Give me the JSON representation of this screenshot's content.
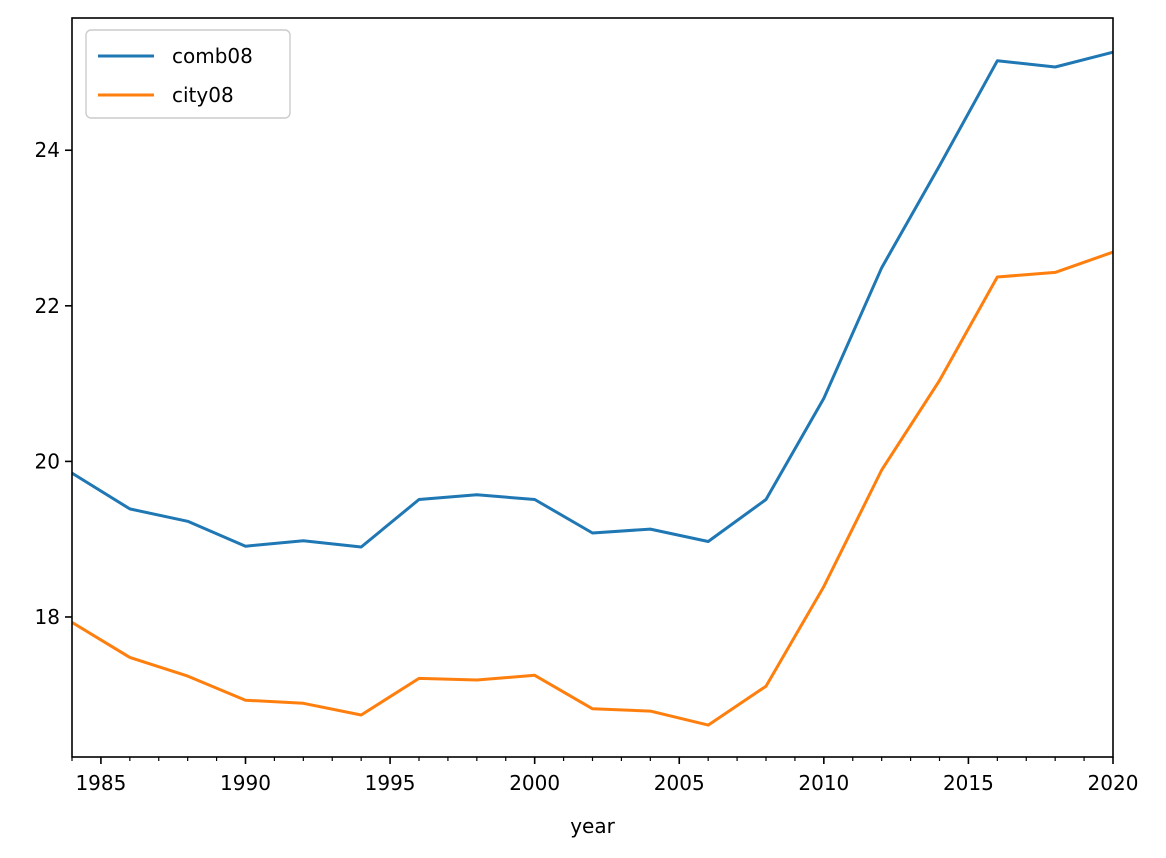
{
  "chart_data": {
    "type": "line",
    "title": "",
    "xlabel": "year",
    "ylabel": "",
    "x": [
      1984,
      1986,
      1988,
      1990,
      1992,
      1994,
      1996,
      1998,
      2000,
      2002,
      2004,
      2006,
      2008,
      2010,
      2012,
      2014,
      2016,
      2018,
      2020
    ],
    "series": [
      {
        "name": "comb08",
        "color": "#1f77b4",
        "values": [
          19.85,
          19.39,
          19.23,
          18.91,
          18.98,
          18.9,
          19.51,
          19.57,
          19.51,
          19.08,
          19.13,
          18.97,
          19.51,
          20.81,
          22.49,
          23.8,
          25.15,
          25.07,
          25.26
        ]
      },
      {
        "name": "city08",
        "color": "#ff7f0e",
        "values": [
          17.93,
          17.48,
          17.24,
          16.93,
          16.89,
          16.74,
          17.21,
          17.19,
          17.25,
          16.82,
          16.79,
          16.61,
          17.11,
          18.39,
          19.89,
          21.04,
          22.37,
          22.43,
          22.69
        ]
      }
    ],
    "xlim": [
      1984,
      2020
    ],
    "ylim": [
      16.2,
      25.7
    ],
    "x_ticks": [
      1985,
      1990,
      1995,
      2000,
      2005,
      2010,
      2015,
      2020
    ],
    "x_tick_labels": [
      "1985",
      "1990",
      "1995",
      "2000",
      "2005",
      "2010",
      "2015",
      "2020"
    ],
    "y_ticks": [
      18,
      20,
      22,
      24
    ],
    "y_tick_labels": [
      "18",
      "20",
      "22",
      "24"
    ],
    "grid": false,
    "legend_position": "upper-left"
  }
}
